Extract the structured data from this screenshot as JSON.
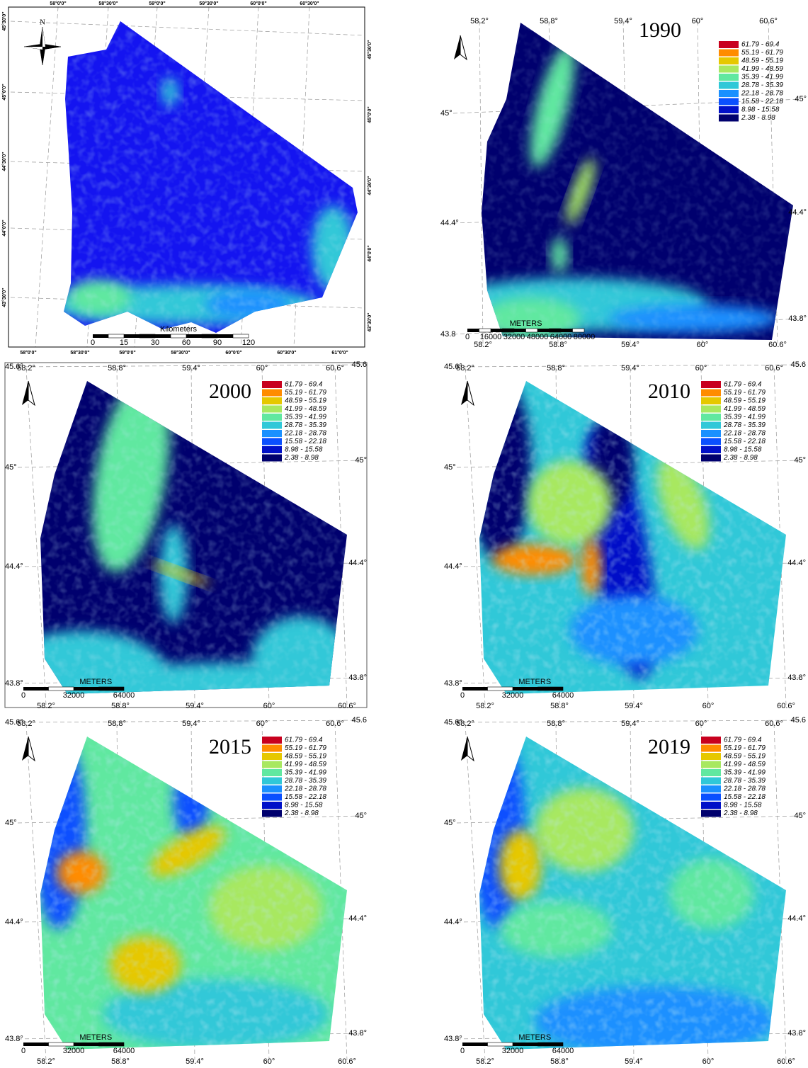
{
  "overview": {
    "north": "N",
    "top_labels": [
      "58°0'0\"",
      "58°30'0\"",
      "59°0'0\"",
      "59°30'0\"",
      "60°0'0\"",
      "60°30'0\""
    ],
    "bottom_labels": [
      "58°0'0\"",
      "58°30'0\"",
      "59°0'0\"",
      "59°30'0\"",
      "60°0'0\"",
      "60°30'0\"",
      "61°0'0\""
    ],
    "left_labels": [
      "45°30'0\"",
      "45°0'0\"",
      "44°30'0\"",
      "44°0'0\"",
      "43°30'0\""
    ],
    "right_labels": [
      "45°30'0\"",
      "45°0'0\"",
      "44°30'0\"",
      "44°0'0\"",
      "43°30'0\""
    ],
    "scale": {
      "title": "Kilometers",
      "ticks": [
        "0",
        "15",
        "30",
        "60",
        "90",
        "120"
      ]
    }
  },
  "legend": {
    "classes": [
      {
        "label": "61.79 - 69.4",
        "color": "#c8001e"
      },
      {
        "label": "55.19 - 61.79",
        "color": "#ff8c00"
      },
      {
        "label": "48.59 - 55.19",
        "color": "#e6c800"
      },
      {
        "label": "41.99 - 48.59",
        "color": "#a8e860"
      },
      {
        "label": "35.39 - 41.99",
        "color": "#60e8a0"
      },
      {
        "label": "28.78 - 35.39",
        "color": "#30c8d8"
      },
      {
        "label": "22.18 - 28.78",
        "color": "#1a90ff"
      },
      {
        "label": "15.58 - 22.18",
        "color": "#0a50ff"
      },
      {
        "label": "8.98 - 15.58",
        "color": "#0010c8"
      },
      {
        "label": "2.38 - 8.98",
        "color": "#00006e"
      }
    ]
  },
  "panels": [
    {
      "year": "1990",
      "top_labels": [
        "58.2°",
        "58.8°",
        "59.4°",
        "60°",
        "60.6°"
      ],
      "bottom_labels": [
        "58.2°",
        "58.8°",
        "59.4°",
        "60°",
        "60.6°"
      ],
      "left_labels": [
        "45°",
        "44.4°",
        "43.8"
      ],
      "right_labels": [
        "45°",
        "44.4°",
        "43.8°"
      ],
      "scale": {
        "title": "METERS",
        "ticks": [
          "0",
          "16000",
          "32000",
          "48000",
          "64000",
          "80000"
        ]
      }
    },
    {
      "year": "2000",
      "top_labels": [
        "58.2°",
        "58.8°",
        "59.4°",
        "60°",
        "60.6°"
      ],
      "bottom_labels": [
        "58.2°",
        "58.8°",
        "59.4°",
        "60°",
        "60.6°"
      ],
      "left_labels": [
        "45.6°",
        "45°",
        "44.4°",
        "43.8°"
      ],
      "right_labels": [
        "45.6",
        "45°",
        "44.4°",
        "43.8°"
      ],
      "scale": {
        "title": "METERS",
        "ticks": [
          "0",
          "32000",
          "64000"
        ]
      }
    },
    {
      "year": "2010",
      "top_labels": [
        "58.2°",
        "58.8°",
        "59.4°",
        "60°",
        "60.6°"
      ],
      "bottom_labels": [
        "58.2°",
        "58.8°",
        "59.4°",
        "60°",
        "60.6°"
      ],
      "left_labels": [
        "45.6°",
        "45°",
        "44.4°",
        "43.8°"
      ],
      "right_labels": [
        "45.6",
        "45°",
        "44.4°",
        "43.8°"
      ],
      "scale": {
        "title": "METERS",
        "ticks": [
          "0",
          "32000",
          "64000"
        ]
      }
    },
    {
      "year": "2015",
      "top_labels": [
        "58.2°",
        "58.8°",
        "59.4°",
        "60°",
        "60.6°"
      ],
      "bottom_labels": [
        "58.2°",
        "58.8°",
        "59.4°",
        "60°",
        "60.6°"
      ],
      "left_labels": [
        "45.6°",
        "45°",
        "44.4°",
        "43.8°"
      ],
      "right_labels": [
        "45.6",
        "45°",
        "44.4°",
        "43.8°"
      ],
      "scale": {
        "title": "METERS",
        "ticks": [
          "0",
          "32000",
          "64000"
        ]
      }
    },
    {
      "year": "2019",
      "top_labels": [
        "58.2°",
        "58.8°",
        "59.4°",
        "60°",
        "60.6°"
      ],
      "bottom_labels": [
        "58.2°",
        "58.8°",
        "59.4°",
        "60°",
        "60.6°"
      ],
      "left_labels": [
        "45.6°",
        "45°",
        "44.4°",
        "43.8°"
      ],
      "right_labels": [
        "45.6",
        "45°",
        "44.4°",
        "43.8°"
      ],
      "scale": {
        "title": "METERS",
        "ticks": [
          "0",
          "32000",
          "64000"
        ]
      }
    }
  ]
}
